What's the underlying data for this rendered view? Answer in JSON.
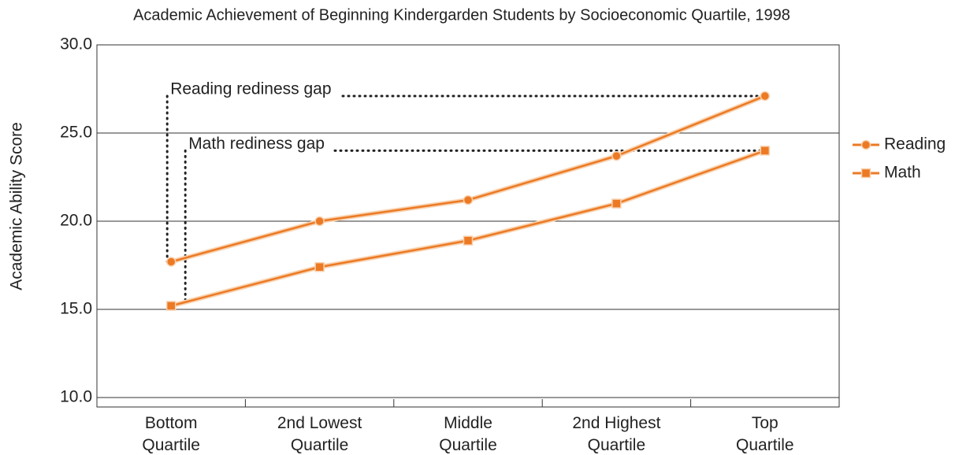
{
  "chart_data": {
    "type": "line",
    "title": "Academic Achievement of Beginning Kindergarden Students by Socioeconomic Quartile, 1998",
    "ylabel": "Academic Ability Score",
    "categories": [
      "Bottom\nQuartile",
      "2nd Lowest\nQuartile",
      "Middle\nQuartile",
      "2nd Highest\nQuartile",
      "Top\nQuartile"
    ],
    "series": [
      {
        "name": "Reading",
        "color": "#ec7a24",
        "marker": "circle",
        "values": [
          17.7,
          20.0,
          21.2,
          23.7,
          27.1
        ]
      },
      {
        "name": "Math",
        "color": "#ec7a24",
        "marker": "square",
        "values": [
          15.2,
          17.4,
          18.9,
          21.0,
          24.0
        ]
      }
    ],
    "annotations": [
      "Reading rediness gap",
      "Math rediness gap"
    ],
    "ylim": [
      10,
      30
    ],
    "yticks": [
      {
        "value": 10,
        "label": "10.0"
      },
      {
        "value": 15,
        "label": "15.0"
      },
      {
        "value": 20,
        "label": "20.0"
      },
      {
        "value": 25,
        "label": "25.0"
      },
      {
        "value": 30,
        "label": "30.0"
      }
    ],
    "grid": true,
    "legend": "right"
  }
}
